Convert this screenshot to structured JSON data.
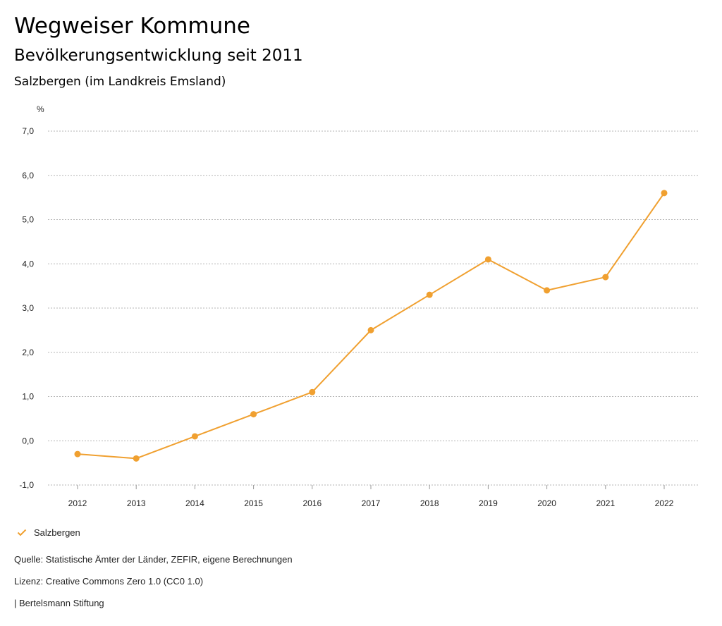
{
  "header": {
    "title": "Wegweiser Kommune",
    "subtitle": "Bevölkerungsentwicklung seit 2011",
    "region": "Salzbergen (im Landkreis Emsland)"
  },
  "chart_data": {
    "type": "line",
    "ylabel": "%",
    "xlabel": "",
    "x": [
      "2012",
      "2013",
      "2014",
      "2015",
      "2016",
      "2017",
      "2018",
      "2019",
      "2020",
      "2021",
      "2022"
    ],
    "ylim": [
      -1.0,
      7.0
    ],
    "yticks": [
      "-1,0",
      "0,0",
      "1,0",
      "2,0",
      "3,0",
      "4,0",
      "5,0",
      "6,0",
      "7,0"
    ],
    "series": [
      {
        "name": "Salzbergen",
        "color": "#F0A030",
        "values": [
          -0.3,
          -0.4,
          0.1,
          0.6,
          1.1,
          2.5,
          3.3,
          4.1,
          3.4,
          3.7,
          5.6
        ]
      }
    ],
    "grid": true,
    "legend": "bottom-left"
  },
  "legend": {
    "label": "Salzbergen",
    "icon": "check-icon"
  },
  "footer": {
    "source": "Quelle: Statistische Ämter der Länder, ZEFIR, eigene Berechnungen",
    "license": "Lizenz: Creative Commons Zero 1.0 (CC0 1.0)",
    "publisher": "| Bertelsmann Stiftung"
  }
}
